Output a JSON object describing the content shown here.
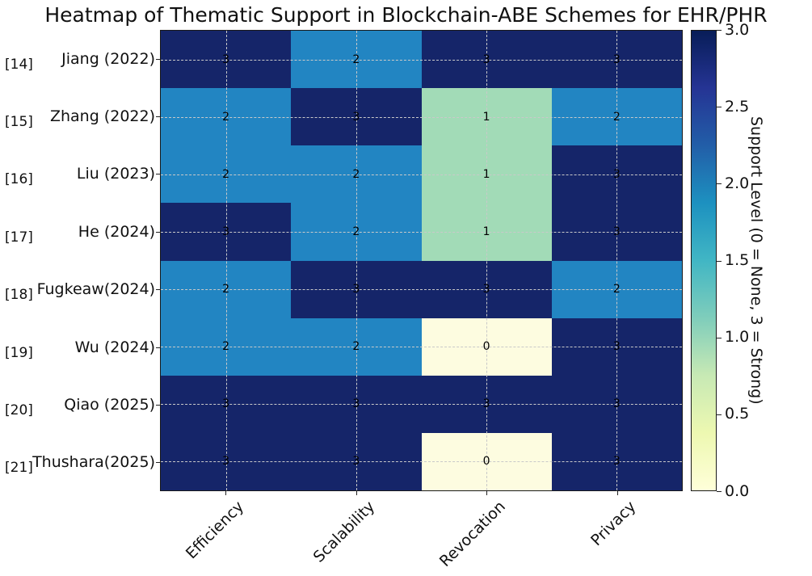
{
  "title": "Heatmap of Thematic Support in Blockchain-ABE Schemes for EHR/PHR",
  "chart_data": {
    "type": "heatmap",
    "title": "Heatmap of Thematic Support in Blockchain-ABE Schemes for EHR/PHR",
    "columns": [
      "Efficiency",
      "Scalability",
      "Revocation",
      "Privacy"
    ],
    "rows": [
      {
        "ref": "[14]",
        "label": "Jiang (2022)",
        "values": [
          3,
          2,
          3,
          3
        ]
      },
      {
        "ref": "[15]",
        "label": "Zhang (2022)",
        "values": [
          2,
          3,
          1,
          2
        ]
      },
      {
        "ref": "[16]",
        "label": "Liu (2023)",
        "values": [
          2,
          2,
          1,
          3
        ]
      },
      {
        "ref": "[17]",
        "label": "He (2024)",
        "values": [
          3,
          2,
          1,
          3
        ]
      },
      {
        "ref": "[18]",
        "label": "Fugkeaw(2024)",
        "values": [
          2,
          3,
          3,
          2
        ]
      },
      {
        "ref": "[19]",
        "label": "Wu (2024)",
        "values": [
          2,
          2,
          0,
          3
        ]
      },
      {
        "ref": "[20]",
        "label": "Qiao (2025)",
        "values": [
          3,
          3,
          3,
          3
        ]
      },
      {
        "ref": "[21]",
        "label": "Thushara(2025)",
        "values": [
          3,
          3,
          0,
          3
        ]
      }
    ],
    "value_colors": {
      "0": "#fdfce0",
      "1": "#a2dbb7",
      "2": "#2285c2",
      "3": "#152569"
    },
    "colorbar": {
      "label": "Support Level (0 = None, 3 = Strong)",
      "min": 0,
      "max": 3,
      "ticks": [
        "0.0",
        "0.5",
        "1.0",
        "1.5",
        "2.0",
        "2.5",
        "3.0"
      ],
      "colormap_name": "YlGnBu",
      "colormap_stops": [
        "#ffffd9",
        "#edf8b1",
        "#c7e9b4",
        "#7fcdbb",
        "#41b6c4",
        "#1d91c0",
        "#225ea8",
        "#253494",
        "#081d58"
      ]
    },
    "grid": {
      "style": "dashed",
      "color": "#c9c9c9",
      "position": "cell-centers"
    },
    "legend_position": "right-colorbar"
  }
}
